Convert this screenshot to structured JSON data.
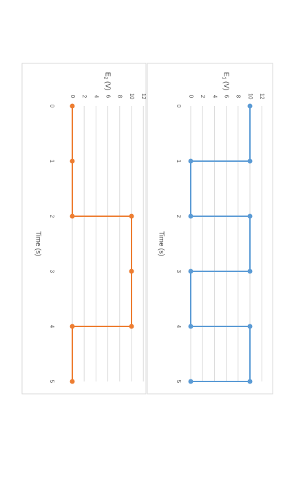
{
  "chart_data": [
    {
      "type": "line",
      "step": "post",
      "title": "",
      "xlabel": "Time (s)",
      "ylabel": "E",
      "ylabel_subscript": "1",
      "ylabel_unit": "(V)",
      "x_ticks": [
        "0",
        "1",
        "2",
        "3",
        "4",
        "5"
      ],
      "y_ticks": [
        "0",
        "2",
        "4",
        "6",
        "8",
        "10",
        "12"
      ],
      "xlim": [
        0,
        5
      ],
      "ylim": [
        0,
        12
      ],
      "grid": true,
      "color": "#5B9BD5",
      "series": [
        {
          "x": [
            0,
            1,
            1,
            2,
            2,
            3,
            3,
            4,
            4,
            5,
            5
          ],
          "values": [
            10,
            10,
            0,
            0,
            10,
            10,
            0,
            0,
            10,
            10,
            0
          ]
        }
      ]
    },
    {
      "type": "line",
      "step": "post",
      "title": "",
      "xlabel": "Time (s)",
      "ylabel": "E",
      "ylabel_subscript": "2",
      "ylabel_unit": "(V)",
      "x_ticks": [
        "0",
        "1",
        "2",
        "3",
        "4",
        "5"
      ],
      "y_ticks": [
        "0",
        "2",
        "4",
        "6",
        "8",
        "10",
        "12"
      ],
      "xlim": [
        0,
        5
      ],
      "ylim": [
        0,
        12
      ],
      "grid": true,
      "color": "#ED7D31",
      "series": [
        {
          "x": [
            0,
            1,
            2,
            2,
            3,
            4,
            4,
            5
          ],
          "values": [
            0,
            0,
            0,
            10,
            10,
            10,
            0,
            0
          ]
        }
      ]
    }
  ]
}
